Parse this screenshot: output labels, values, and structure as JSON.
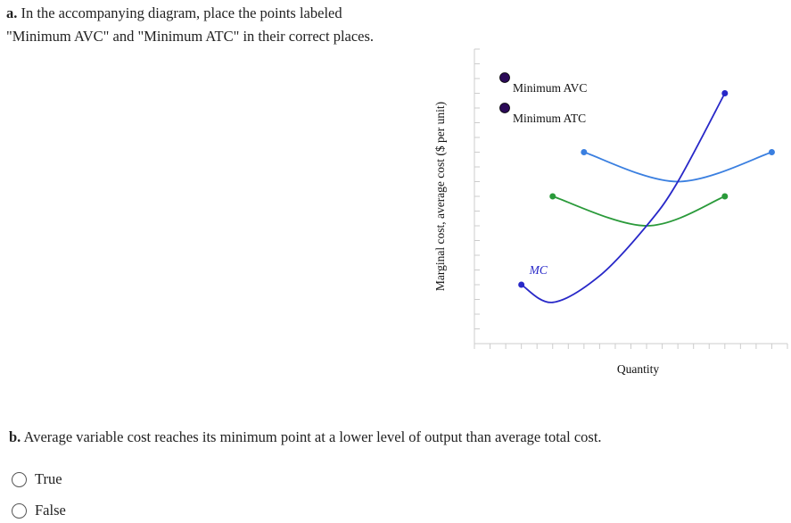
{
  "part_a": {
    "prefix": "a.",
    "text": " In the accompanying diagram, place the points labeled \"Minimum AVC\" and \"Minimum ATC\" in their correct places."
  },
  "part_b": {
    "prefix": "b.",
    "text": " Average variable cost reaches its minimum point at a lower level of output than average total cost."
  },
  "options": [
    {
      "label": "True",
      "selected": false
    },
    {
      "label": "False",
      "selected": false
    }
  ],
  "draggable_points": [
    {
      "label": "Minimum AVC",
      "color": "#2b0a57"
    },
    {
      "label": "Minimum ATC",
      "color": "#2b0a57"
    }
  ],
  "chart_data": {
    "type": "line",
    "xlabel": "Quantity",
    "ylabel": "Marginal cost, average cost ($ per unit)",
    "xlim": [
      0,
      20
    ],
    "ylim": [
      0,
      20
    ],
    "x_ticks": 20,
    "y_ticks": 20,
    "tick_labels": false,
    "grid": false,
    "series": [
      {
        "name": "",
        "color": "#3a7fe0",
        "points": [
          [
            7,
            13
          ],
          [
            13,
            11
          ],
          [
            19,
            13
          ]
        ]
      },
      {
        "name": "",
        "color": "#2a9a3a",
        "points": [
          [
            5,
            10
          ],
          [
            11,
            8
          ],
          [
            16,
            10
          ]
        ]
      },
      {
        "name": "MC",
        "color": "#2828c8",
        "points": [
          [
            3,
            4
          ],
          [
            5,
            2.8
          ],
          [
            8,
            4.6
          ],
          [
            11,
            8
          ],
          [
            13,
            11
          ],
          [
            16,
            17
          ]
        ]
      }
    ]
  }
}
